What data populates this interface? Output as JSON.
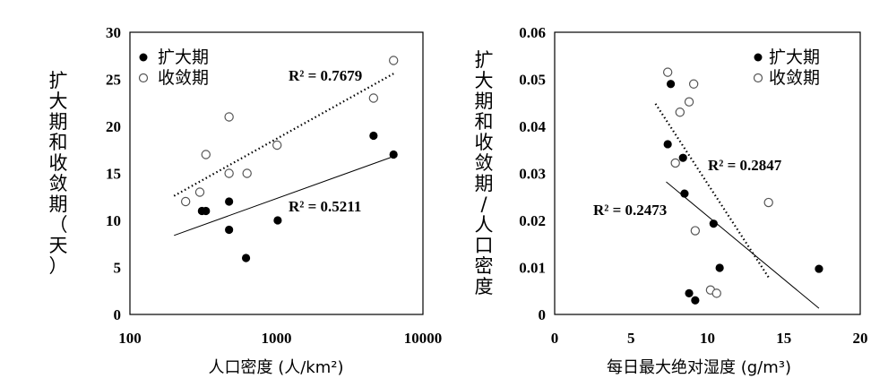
{
  "chart_data": [
    {
      "type": "scatter",
      "xlabel": "人口密度 (人/km²)",
      "ylabel": "扩大期和收敛期（天）",
      "x_scale": "log",
      "xlim": [
        100,
        10000
      ],
      "ylim": [
        0,
        30
      ],
      "x_ticks": [
        "100",
        "1000",
        "10000"
      ],
      "y_ticks": [
        "0",
        "5",
        "10",
        "15",
        "20",
        "25",
        "30"
      ],
      "series": [
        {
          "name": "扩大期",
          "marker": "filled",
          "points": [
            [
              310,
              11
            ],
            [
              330,
              11
            ],
            [
              475,
              12
            ],
            [
              475,
              9
            ],
            [
              620,
              6
            ],
            [
              1020,
              10
            ],
            [
              4600,
              19
            ],
            [
              6300,
              17
            ]
          ],
          "trend": {
            "style": "solid",
            "from": [
              200,
              8.4
            ],
            "to": [
              6300,
              16.8
            ],
            "r2_label": "R² = 0.5211"
          }
        },
        {
          "name": "收敛期",
          "marker": "open",
          "points": [
            [
              240,
              12
            ],
            [
              300,
              13
            ],
            [
              330,
              17
            ],
            [
              475,
              21
            ],
            [
              475,
              15
            ],
            [
              630,
              15
            ],
            [
              1010,
              18
            ],
            [
              4600,
              23
            ],
            [
              6300,
              27
            ]
          ],
          "trend": {
            "style": "dotted",
            "from": [
              200,
              12.6
            ],
            "to": [
              6300,
              25.6
            ],
            "r2_label": "R² = 0.7679"
          }
        }
      ]
    },
    {
      "type": "scatter",
      "xlabel": "每日最大绝对湿度 (g/m³)",
      "ylabel": "扩大期和收敛期/人口密度",
      "xlim": [
        0,
        20
      ],
      "ylim": [
        0,
        0.06
      ],
      "x_ticks": [
        "0",
        "5",
        "10",
        "15",
        "20"
      ],
      "y_ticks": [
        "0",
        "0.01",
        "0.02",
        "0.03",
        "0.04",
        "0.05",
        "0.06"
      ],
      "series": [
        {
          "name": "扩大期",
          "marker": "filled",
          "points": [
            [
              7.4,
              0.0362
            ],
            [
              7.6,
              0.049
            ],
            [
              8.4,
              0.0333
            ],
            [
              8.5,
              0.0257
            ],
            [
              8.8,
              0.0045
            ],
            [
              9.2,
              0.003
            ],
            [
              10.4,
              0.0193
            ],
            [
              10.8,
              0.0099
            ],
            [
              17.3,
              0.0097
            ]
          ],
          "trend": {
            "style": "solid",
            "from": [
              7.3,
              0.0282
            ],
            "to": [
              17.3,
              0.0013
            ],
            "r2_label": "R² = 0.2473"
          }
        },
        {
          "name": "收敛期",
          "marker": "open",
          "points": [
            [
              7.4,
              0.0515
            ],
            [
              7.9,
              0.0322
            ],
            [
              8.2,
              0.043
            ],
            [
              8.8,
              0.0452
            ],
            [
              9.1,
              0.049
            ],
            [
              9.2,
              0.0178
            ],
            [
              10.2,
              0.0052
            ],
            [
              10.6,
              0.0045
            ],
            [
              14.0,
              0.0238
            ]
          ],
          "trend": {
            "style": "dotted",
            "from": [
              6.6,
              0.0448
            ],
            "to": [
              14.0,
              0.0079
            ],
            "r2_label": "R² = 0.2847"
          }
        }
      ]
    }
  ]
}
